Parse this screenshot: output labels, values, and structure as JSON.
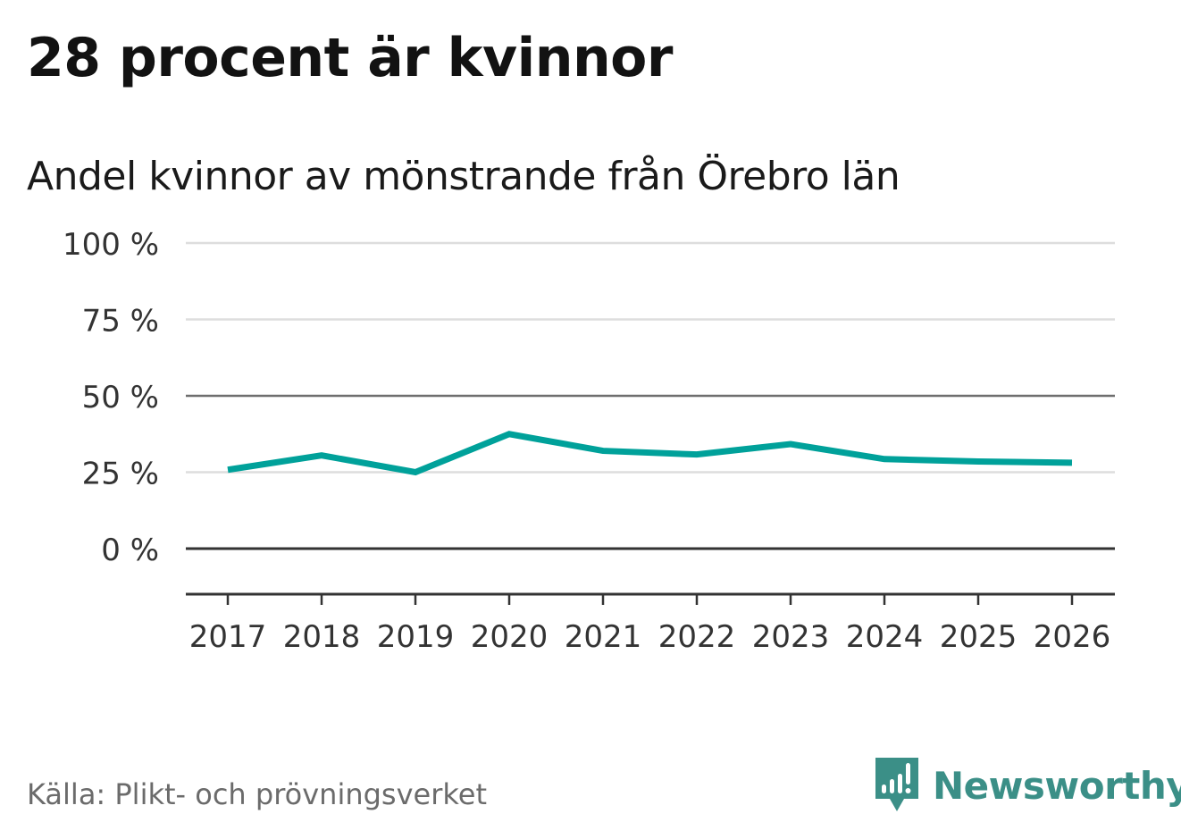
{
  "header": {
    "title": "28 procent är kvinnor",
    "subtitle": "Andel kvinnor av mönstrande från Örebro län"
  },
  "footer": {
    "source": "Källa: Plikt- och prövningsverket",
    "logo_text": "Newsworthy"
  },
  "colors": {
    "line": "#00a19a",
    "grid": "#dddddd",
    "axis": "#333333",
    "reference_line": "#6e6e6e",
    "logo": "#3b8f87"
  },
  "chart_data": {
    "type": "line",
    "title": "Andel kvinnor av mönstrande från Örebro län",
    "xlabel": "",
    "ylabel": "",
    "x": [
      "2017",
      "2018",
      "2019",
      "2020",
      "2021",
      "2022",
      "2023",
      "2024",
      "2025",
      "2026"
    ],
    "series": [
      {
        "name": "Andel kvinnor",
        "values": [
          25.8,
          30.5,
          25.0,
          37.5,
          32.0,
          30.8,
          34.2,
          29.3,
          28.5,
          28.1
        ]
      }
    ],
    "ylim": [
      -15,
      100
    ],
    "yticks": [
      0,
      25,
      50,
      75,
      100
    ],
    "ytick_labels": [
      "0 %",
      "25 %",
      "50 %",
      "75 %",
      "100 %"
    ],
    "reference_lines": [
      0,
      50
    ],
    "grid": true,
    "legend": "none"
  }
}
